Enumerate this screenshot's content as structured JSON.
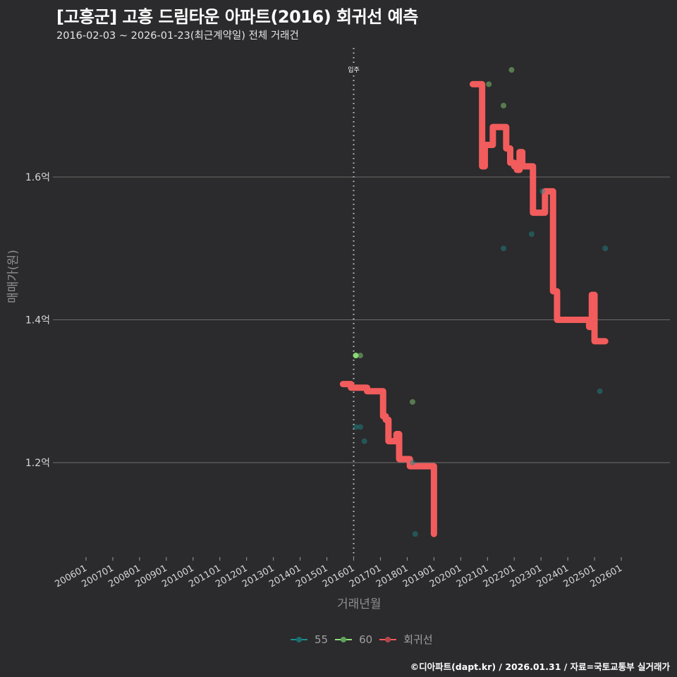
{
  "header": {
    "title": "[고흥군] 고흥 드림타운 아파트(2016) 회귀선 예측",
    "subtitle": "2016-02-03 ~ 2026-01-23(최근계약일) 전체 거래건"
  },
  "axes": {
    "ylabel": "매매가(원)",
    "xlabel": "거래년월"
  },
  "legend": {
    "items": [
      {
        "label": "55",
        "color": "#1f8c8c"
      },
      {
        "label": "60",
        "color": "#8fe07a"
      },
      {
        "label": "회귀선",
        "color": "#f25c5c"
      }
    ]
  },
  "footer": "©디아파트(dapt.kr) / 2026.01.31 / 자료=국토교통부 실거래가",
  "chart_data": {
    "type": "scatter",
    "title": "[고흥군] 고흥 드림타운 아파트(2016) 회귀선 예측",
    "subtitle": "2016-02-03 ~ 2026-01-23(최근계약일) 전체 거래건",
    "xlabel": "거래년월",
    "ylabel": "매매가(원)",
    "x_ticks": [
      "200601",
      "200701",
      "200801",
      "200901",
      "201001",
      "201101",
      "201201",
      "201301",
      "201401",
      "201501",
      "201601",
      "201701",
      "201801",
      "201901",
      "202001",
      "202101",
      "202201",
      "202301",
      "202401",
      "202501",
      "202601"
    ],
    "y_ticks": [
      "1.2억",
      "1.4억",
      "1.6억"
    ],
    "y_tick_values": [
      1.2,
      1.4,
      1.6
    ],
    "ylim": [
      1.08,
      1.78
    ],
    "grid": "horizontal",
    "legend_position": "bottom",
    "annotation": {
      "label": "입주",
      "x": "201601",
      "style": "dotted vertical line"
    },
    "series": [
      {
        "name": "55",
        "color": "#1f8c8c",
        "points": [
          {
            "x": 2016.08,
            "y": 1.25
          },
          {
            "x": 2016.25,
            "y": 1.25
          },
          {
            "x": 2016.4,
            "y": 1.23
          },
          {
            "x": 2018.2,
            "y": 1.2
          },
          {
            "x": 2018.3,
            "y": 1.1
          },
          {
            "x": 2023.05,
            "y": 1.58
          },
          {
            "x": 2022.65,
            "y": 1.52
          },
          {
            "x": 2021.6,
            "y": 1.5
          },
          {
            "x": 2025.4,
            "y": 1.5
          },
          {
            "x": 2025.2,
            "y": 1.3
          }
        ]
      },
      {
        "name": "60",
        "color": "#8fe07a",
        "points": [
          {
            "x": 2016.08,
            "y": 1.35
          },
          {
            "x": 2016.25,
            "y": 1.35
          },
          {
            "x": 2018.2,
            "y": 1.285
          },
          {
            "x": 2021.05,
            "y": 1.73
          },
          {
            "x": 2021.6,
            "y": 1.7
          },
          {
            "x": 2021.9,
            "y": 1.75
          }
        ]
      },
      {
        "name": "회귀선",
        "color": "#f25c5c",
        "points": [
          {
            "x": 2015.6,
            "y": 1.31
          },
          {
            "x": 2015.8,
            "y": 1.31
          },
          {
            "x": 2015.9,
            "y": 1.305
          },
          {
            "x": 2016.3,
            "y": 1.305
          },
          {
            "x": 2016.5,
            "y": 1.3
          },
          {
            "x": 2016.8,
            "y": 1.3
          },
          {
            "x": 2017.0,
            "y": 1.3
          },
          {
            "x": 2017.1,
            "y": 1.265
          },
          {
            "x": 2017.2,
            "y": 1.26
          },
          {
            "x": 2017.3,
            "y": 1.23
          },
          {
            "x": 2017.5,
            "y": 1.23
          },
          {
            "x": 2017.6,
            "y": 1.24
          },
          {
            "x": 2017.7,
            "y": 1.205
          },
          {
            "x": 2018.0,
            "y": 1.205
          },
          {
            "x": 2018.1,
            "y": 1.195
          },
          {
            "x": 2018.9,
            "y": 1.195
          },
          {
            "x": 2019.0,
            "y": 1.1
          },
          {
            "x": 2020.45,
            "y": 1.73
          },
          {
            "x": 2020.6,
            "y": 1.73
          },
          {
            "x": 2020.8,
            "y": 1.615
          },
          {
            "x": 2020.9,
            "y": 1.645
          },
          {
            "x": 2021.1,
            "y": 1.645
          },
          {
            "x": 2021.2,
            "y": 1.67
          },
          {
            "x": 2021.6,
            "y": 1.67
          },
          {
            "x": 2021.7,
            "y": 1.64
          },
          {
            "x": 2021.85,
            "y": 1.62
          },
          {
            "x": 2022.0,
            "y": 1.615
          },
          {
            "x": 2022.1,
            "y": 1.61
          },
          {
            "x": 2022.2,
            "y": 1.635
          },
          {
            "x": 2022.3,
            "y": 1.615
          },
          {
            "x": 2022.6,
            "y": 1.615
          },
          {
            "x": 2022.7,
            "y": 1.55
          },
          {
            "x": 2023.0,
            "y": 1.55
          },
          {
            "x": 2023.15,
            "y": 1.58
          },
          {
            "x": 2023.3,
            "y": 1.58
          },
          {
            "x": 2023.45,
            "y": 1.44
          },
          {
            "x": 2023.6,
            "y": 1.4
          },
          {
            "x": 2024.7,
            "y": 1.4
          },
          {
            "x": 2024.8,
            "y": 1.39
          },
          {
            "x": 2024.9,
            "y": 1.435
          },
          {
            "x": 2025.0,
            "y": 1.37
          },
          {
            "x": 2025.4,
            "y": 1.37
          }
        ]
      }
    ]
  }
}
